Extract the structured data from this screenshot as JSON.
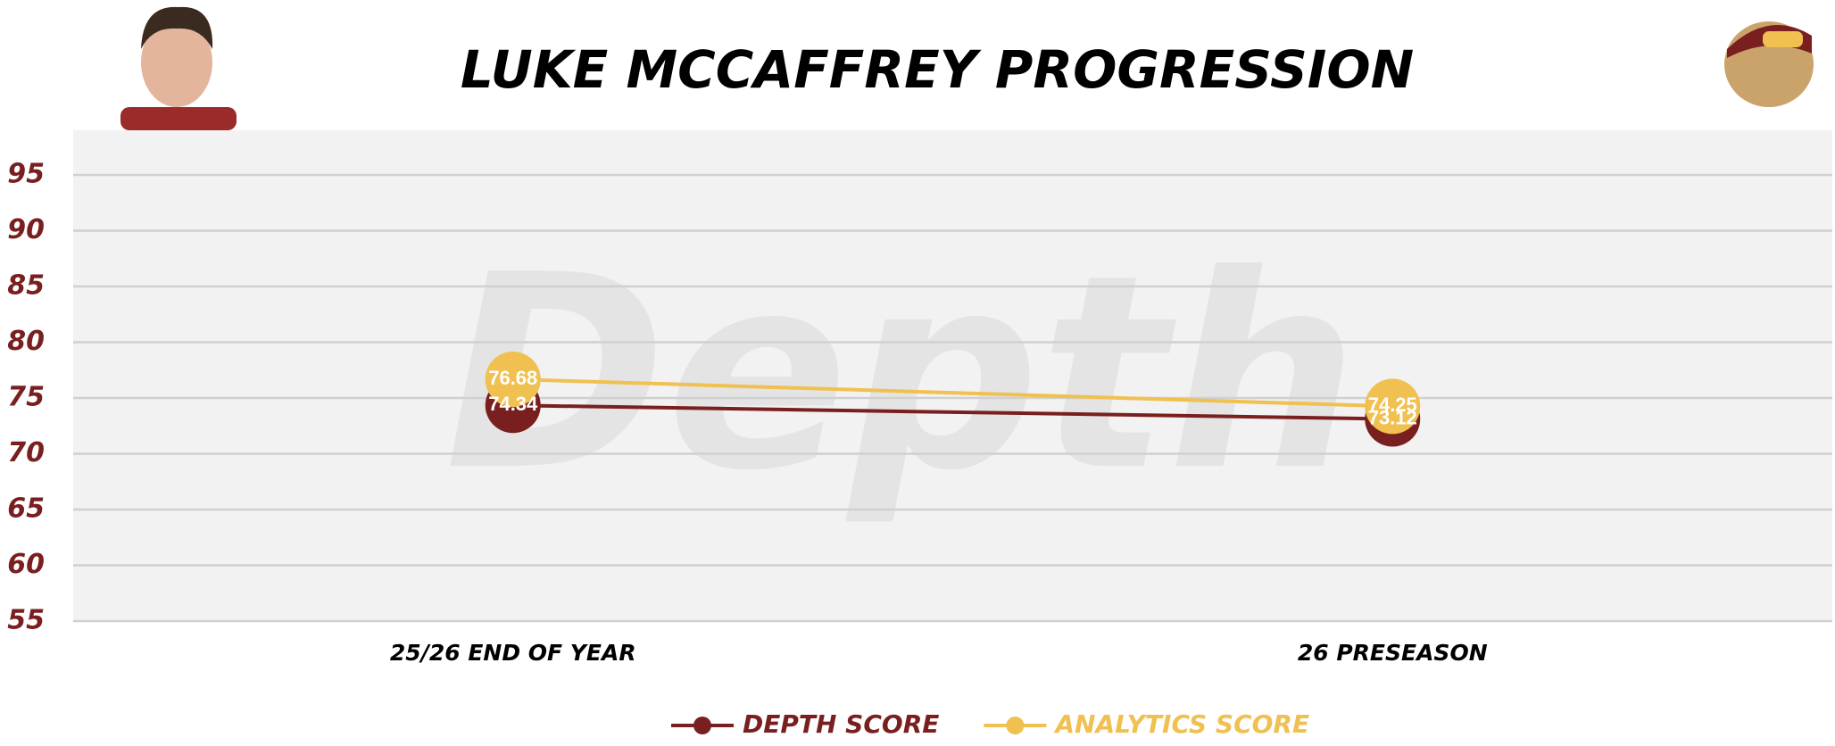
{
  "chart_data": {
    "type": "line",
    "title": "LUKE MCCAFFREY PROGRESSION",
    "watermark": "Depth",
    "categories": [
      "25/26 END OF YEAR",
      "26 PRESEASON"
    ],
    "series": [
      {
        "name": "DEPTH SCORE",
        "color": "#7a1f1f",
        "values": [
          74.34,
          73.12
        ]
      },
      {
        "name": "ANALYTICS SCORE",
        "color": "#f0c050",
        "values": [
          76.68,
          74.25
        ]
      }
    ],
    "ylim": [
      55,
      99
    ],
    "yticks": [
      55,
      60,
      65,
      70,
      75,
      80,
      85,
      90,
      95
    ],
    "grid": true,
    "legend": "bottom"
  }
}
